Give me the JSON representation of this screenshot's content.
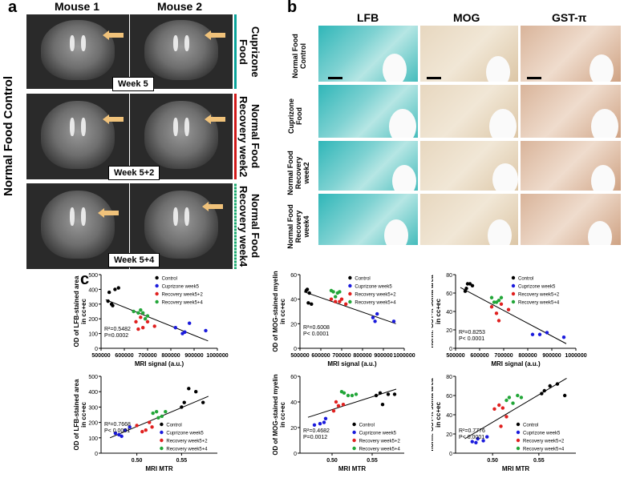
{
  "panel_a": {
    "label": "a",
    "col_headers": [
      "Mouse 1",
      "Mouse 2"
    ],
    "side_label": "Normal Food Control",
    "rows": [
      {
        "week": "Week 5",
        "condition": "Cuprizone Food",
        "color": "#0aa39a"
      },
      {
        "week": "Week 5+2",
        "condition": "Normal Food Recovery week2",
        "color": "#d11a1a"
      },
      {
        "week": "Week 5+4",
        "condition": "Normal Food Recovery week4",
        "color": "#1ba870"
      }
    ]
  },
  "panel_b": {
    "label": "b",
    "col_headers": [
      "LFB",
      "MOG",
      "GST-π"
    ],
    "row_labels": [
      "Normal Food\nControl",
      "Cuprizone\nFood",
      "Normal Food\nRecovery\nweek2",
      "Normal Food\nRecovery\nweek4"
    ]
  },
  "panel_c": {
    "label": "c"
  },
  "chart_data": [
    {
      "type": "scatter",
      "ylabel": "OD of LFB-stained area in cc+ec",
      "xlabel": "MRI signal (a.u.)",
      "xlim": [
        500000,
        1000000
      ],
      "xticks": [
        "500000",
        "600000",
        "700000",
        "800000",
        "900000",
        "1000000"
      ],
      "ylim": [
        0,
        500
      ],
      "yticks": [
        "0",
        "100",
        "200",
        "300",
        "400",
        "500"
      ],
      "legend": [
        "Control",
        "Cuprizone week5",
        "Recovery week5+2",
        "Recovery week5+4"
      ],
      "r2": "R²=0.5482",
      "p": "P=0.0002",
      "fit": [
        [
          520000,
          330
        ],
        [
          960000,
          50
        ]
      ],
      "series": [
        {
          "name": "Control",
          "color": "#000000",
          "points": [
            [
              530000,
              320
            ],
            [
              545000,
              300
            ],
            [
              560000,
              400
            ],
            [
              575000,
              410
            ],
            [
              535000,
              380
            ],
            [
              550000,
              290
            ]
          ]
        },
        {
          "name": "Cuprizone week5",
          "color": "#1a1adc",
          "points": [
            [
              820000,
              140
            ],
            [
              850000,
              100
            ],
            [
              860000,
              110
            ],
            [
              880000,
              170
            ],
            [
              950000,
              120
            ]
          ]
        },
        {
          "name": "Recovery week5+2",
          "color": "#e0201f",
          "points": [
            [
              650000,
              180
            ],
            [
              660000,
              130
            ],
            [
              680000,
              140
            ],
            [
              700000,
              180
            ],
            [
              730000,
              150
            ],
            [
              670000,
              210
            ]
          ]
        },
        {
          "name": "Recovery week5+4",
          "color": "#22a638",
          "points": [
            [
              640000,
              250
            ],
            [
              660000,
              240
            ],
            [
              670000,
              260
            ],
            [
              690000,
              200
            ],
            [
              700000,
              220
            ],
            [
              680000,
              240
            ]
          ]
        }
      ]
    },
    {
      "type": "scatter",
      "ylabel": "OD of MOG-stained myelin in cc+ec",
      "xlabel": "MRI signal (a.u.)",
      "xlim": [
        500000,
        1000000
      ],
      "xticks": [
        "500000",
        "600000",
        "700000",
        "800000",
        "900000",
        "1000000"
      ],
      "ylim": [
        0,
        60
      ],
      "yticks": [
        "0",
        "20",
        "40",
        "60"
      ],
      "legend": [
        "Control",
        "Cuprizone week5",
        "Recovery week5+2",
        "Recovery week5+4"
      ],
      "r2": "R²=0.6008",
      "p": "P< 0.0001",
      "fit": [
        [
          520000,
          46
        ],
        [
          960000,
          20
        ]
      ],
      "series": [
        {
          "name": "Control",
          "color": "#000000",
          "points": [
            [
              530000,
              47
            ],
            [
              540000,
              37
            ],
            [
              555000,
              36
            ],
            [
              545000,
              45
            ],
            [
              535000,
              48
            ]
          ]
        },
        {
          "name": "Cuprizone week5",
          "color": "#1a1adc",
          "points": [
            [
              850000,
              25
            ],
            [
              870000,
              28
            ],
            [
              950000,
              22
            ],
            [
              860000,
              22
            ]
          ]
        },
        {
          "name": "Recovery week5+2",
          "color": "#e0201f",
          "points": [
            [
              650000,
              40
            ],
            [
              670000,
              38
            ],
            [
              690000,
              38
            ],
            [
              720000,
              36
            ],
            [
              700000,
              40
            ]
          ]
        },
        {
          "name": "Recovery week5+4",
          "color": "#22a638",
          "points": [
            [
              650000,
              47
            ],
            [
              670000,
              42
            ],
            [
              680000,
              45
            ],
            [
              690000,
              46
            ],
            [
              660000,
              46
            ]
          ]
        }
      ]
    },
    {
      "type": "scatter",
      "ylabel": "norm. GST-π soma area in cc+ec",
      "xlabel": "MRI signal (a.u.)",
      "xlim": [
        500000,
        1000000
      ],
      "xticks": [
        "500000",
        "600000",
        "700000",
        "800000",
        "900000",
        "1000000"
      ],
      "ylim": [
        0,
        80
      ],
      "yticks": [
        "0",
        "20",
        "40",
        "60",
        "80"
      ],
      "legend": [
        "Control",
        "Cuprizone week5",
        "Recovery week5+2",
        "Recovery week5+4"
      ],
      "r2": "R²=0.8253",
      "p": "P< 0.0001",
      "fit": [
        [
          520000,
          66
        ],
        [
          960000,
          5
        ]
      ],
      "series": [
        {
          "name": "Control",
          "color": "#000000",
          "points": [
            [
              540000,
              62
            ],
            [
              550000,
              70
            ],
            [
              560000,
              70
            ],
            [
              570000,
              68
            ],
            [
              545000,
              65
            ]
          ]
        },
        {
          "name": "Cuprizone week5",
          "color": "#1a1adc",
          "points": [
            [
              820000,
              15
            ],
            [
              850000,
              15
            ],
            [
              880000,
              17
            ],
            [
              950000,
              12
            ]
          ]
        },
        {
          "name": "Recovery week5+2",
          "color": "#e0201f",
          "points": [
            [
              650000,
              45
            ],
            [
              670000,
              38
            ],
            [
              680000,
              30
            ],
            [
              720000,
              42
            ],
            [
              690000,
              48
            ]
          ]
        },
        {
          "name": "Recovery week5+4",
          "color": "#22a638",
          "points": [
            [
              650000,
              55
            ],
            [
              670000,
              50
            ],
            [
              680000,
              52
            ],
            [
              690000,
              55
            ],
            [
              660000,
              50
            ]
          ]
        }
      ]
    },
    {
      "type": "scatter",
      "ylabel": "OD of LFB-stained area in cc+ec",
      "xlabel": "MRI MTR",
      "xlim": [
        0.46,
        0.59
      ],
      "xticks": [
        "0.50",
        "0.55"
      ],
      "xtick_values": [
        0.5,
        0.55
      ],
      "ylim": [
        0,
        500
      ],
      "yticks": [
        "0",
        "100",
        "200",
        "300",
        "400",
        "500"
      ],
      "legend": [
        "Control",
        "Cuprizone week5",
        "Recovery week5+2",
        "Recovery week5+4"
      ],
      "legend_pos": "bottom-right",
      "r2": "R²=0.7668",
      "p": "P< 0.0001",
      "fit": [
        [
          0.47,
          100
        ],
        [
          0.58,
          370
        ]
      ],
      "series": [
        {
          "name": "Control",
          "color": "#000000",
          "points": [
            [
              0.553,
              330
            ],
            [
              0.558,
              420
            ],
            [
              0.566,
              400
            ],
            [
              0.574,
              330
            ],
            [
              0.55,
              300
            ]
          ]
        },
        {
          "name": "Cuprizone week5",
          "color": "#1a1adc",
          "points": [
            [
              0.476,
              130
            ],
            [
              0.483,
              110
            ],
            [
              0.487,
              150
            ],
            [
              0.492,
              170
            ],
            [
              0.48,
              120
            ]
          ]
        },
        {
          "name": "Recovery week5+2",
          "color": "#e0201f",
          "points": [
            [
              0.5,
              180
            ],
            [
              0.506,
              140
            ],
            [
              0.51,
              150
            ],
            [
              0.514,
              200
            ],
            [
              0.517,
              170
            ]
          ]
        },
        {
          "name": "Recovery week5+4",
          "color": "#22a638",
          "points": [
            [
              0.518,
              260
            ],
            [
              0.522,
              270
            ],
            [
              0.528,
              240
            ],
            [
              0.532,
              270
            ],
            [
              0.524,
              230
            ]
          ]
        }
      ]
    },
    {
      "type": "scatter",
      "ylabel": "OD of MOG-stained myelin in cc+ec",
      "xlabel": "MRI MTR",
      "xlim": [
        0.46,
        0.59
      ],
      "xticks": [
        "0.50",
        "0.55"
      ],
      "xtick_values": [
        0.5,
        0.55
      ],
      "ylim": [
        0,
        60
      ],
      "yticks": [
        "0",
        "20",
        "40",
        "60"
      ],
      "legend": [
        "Control",
        "Cuprizone week5",
        "Recovery week5+2",
        "Recovery week5+4"
      ],
      "legend_pos": "bottom-right",
      "r2": "R²=0.4682",
      "p": "P=0.0012",
      "fit": [
        [
          0.47,
          28
        ],
        [
          0.58,
          50
        ]
      ],
      "series": [
        {
          "name": "Control",
          "color": "#000000",
          "points": [
            [
              0.555,
              45
            ],
            [
              0.563,
              38
            ],
            [
              0.57,
              46
            ],
            [
              0.578,
              46
            ],
            [
              0.56,
              47
            ]
          ]
        },
        {
          "name": "Cuprizone week5",
          "color": "#1a1adc",
          "points": [
            [
              0.478,
              22
            ],
            [
              0.485,
              23
            ],
            [
              0.492,
              27
            ],
            [
              0.49,
              24
            ]
          ]
        },
        {
          "name": "Recovery week5+2",
          "color": "#e0201f",
          "points": [
            [
              0.502,
              33
            ],
            [
              0.508,
              37
            ],
            [
              0.514,
              38
            ],
            [
              0.505,
              40
            ]
          ]
        },
        {
          "name": "Recovery week5+4",
          "color": "#22a638",
          "points": [
            [
              0.515,
              47
            ],
            [
              0.52,
              45
            ],
            [
              0.525,
              45
            ],
            [
              0.53,
              46
            ],
            [
              0.512,
              48
            ]
          ]
        }
      ]
    },
    {
      "type": "scatter",
      "ylabel": "norm. GST-π soma area in cc+ec",
      "xlabel": "MRI MTR",
      "xlim": [
        0.46,
        0.59
      ],
      "xticks": [
        "0.50",
        "0.55"
      ],
      "xtick_values": [
        0.5,
        0.55
      ],
      "ylim": [
        0,
        80
      ],
      "yticks": [
        "0",
        "20",
        "40",
        "60",
        "80"
      ],
      "legend": [
        "Control",
        "Cuprizone week5",
        "Recovery week5+2",
        "Recovery week5+4"
      ],
      "legend_pos": "bottom-right",
      "r2": "R²=0.7776",
      "p": "P< 0.0001",
      "fit": [
        [
          0.47,
          15
        ],
        [
          0.58,
          78
        ]
      ],
      "series": [
        {
          "name": "Control",
          "color": "#000000",
          "points": [
            [
              0.556,
              65
            ],
            [
              0.562,
              70
            ],
            [
              0.57,
              72
            ],
            [
              0.578,
              60
            ],
            [
              0.553,
              62
            ]
          ]
        },
        {
          "name": "Cuprizone week5",
          "color": "#1a1adc",
          "points": [
            [
              0.478,
              12
            ],
            [
              0.484,
              15
            ],
            [
              0.49,
              13
            ],
            [
              0.494,
              17
            ],
            [
              0.482,
              11
            ]
          ]
        },
        {
          "name": "Recovery week5+2",
          "color": "#e0201f",
          "points": [
            [
              0.502,
              46
            ],
            [
              0.507,
              50
            ],
            [
              0.511,
              47
            ],
            [
              0.515,
              38
            ],
            [
              0.509,
              28
            ]
          ]
        },
        {
          "name": "Recovery week5+4",
          "color": "#22a638",
          "points": [
            [
              0.518,
              58
            ],
            [
              0.522,
              52
            ],
            [
              0.527,
              60
            ],
            [
              0.531,
              58
            ],
            [
              0.515,
              55
            ]
          ]
        }
      ]
    }
  ]
}
